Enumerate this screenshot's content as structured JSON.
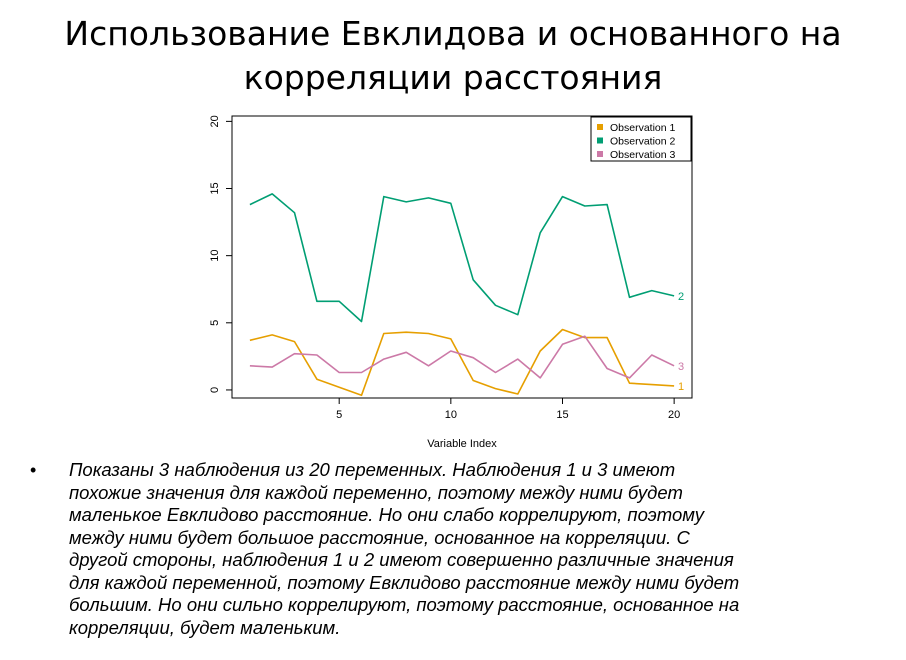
{
  "slide": {
    "title_lines": [
      "Использование Евклидова и основанного на",
      "корреляции расстояния"
    ],
    "bullet_symbol": "•",
    "bullet_lines": [
      "Показаны 3 наблюдения из 20 переменных. Наблюдения 1 и 3 имеют",
      "похожие значения для каждой переменно, поэтому между ними будет",
      "маленькое Евклидово расстояние. Но они слабо коррелируют, поэтому",
      "между  ними будет большое расстояние, основанное на корреляции. С",
      "другой стороны, наблюдения 1 и 2 имеют совершенно различные значения",
      "для каждой переменной, поэтому Евклидово расстояние между ними будет",
      "большим. Но они сильно коррелируют, поэтому расстояние, основанное на",
      "корреляции, будет маленьким."
    ]
  },
  "chart_data": {
    "type": "line",
    "xlabel": "Variable Index",
    "ylabel": "",
    "xlim": [
      0.2,
      20.8
    ],
    "ylim": [
      -0.6,
      20.4
    ],
    "xticks": [
      5,
      10,
      15,
      20
    ],
    "yticks": [
      0,
      5,
      10,
      15,
      20
    ],
    "grid": false,
    "legend_position": "top-right",
    "x": [
      1,
      2,
      3,
      4,
      5,
      6,
      7,
      8,
      9,
      10,
      11,
      12,
      13,
      14,
      15,
      16,
      17,
      18,
      19,
      20
    ],
    "series": [
      {
        "name": "Observation 1",
        "end_label": "1",
        "color": "#E69F00",
        "values": [
          3.7,
          4.1,
          3.6,
          0.8,
          0.2,
          -0.4,
          4.2,
          4.3,
          4.2,
          3.8,
          0.7,
          0.1,
          -0.3,
          2.9,
          4.5,
          3.9,
          3.9,
          0.5,
          0.4,
          0.3
        ]
      },
      {
        "name": "Observation 2",
        "end_label": "2",
        "color": "#009E73",
        "values": [
          13.8,
          14.6,
          13.2,
          6.6,
          6.6,
          5.1,
          14.4,
          14.0,
          14.3,
          13.9,
          8.2,
          6.3,
          5.6,
          11.7,
          14.4,
          13.7,
          13.8,
          6.9,
          7.4,
          7.0
        ]
      },
      {
        "name": "Observation 3",
        "end_label": "3",
        "color": "#CC79A7",
        "values": [
          1.8,
          1.7,
          2.7,
          2.6,
          1.3,
          1.3,
          2.3,
          2.8,
          1.8,
          2.9,
          2.4,
          1.3,
          2.3,
          0.9,
          3.4,
          4.0,
          1.6,
          0.9,
          2.6,
          1.8
        ]
      }
    ]
  }
}
